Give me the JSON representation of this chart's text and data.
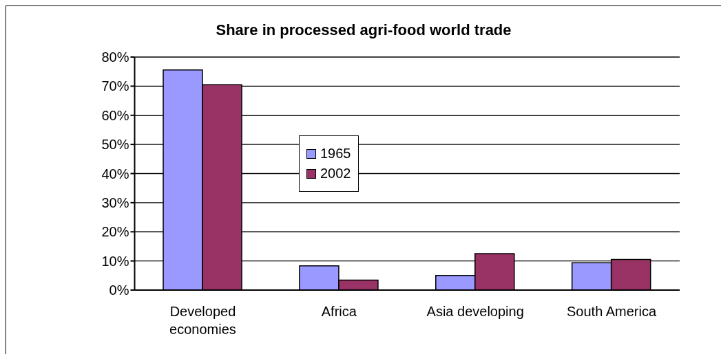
{
  "chart_data": {
    "type": "bar",
    "title": "Share in processed agri-food world trade",
    "categories": [
      "Developed economies",
      "Africa",
      "Asia developing",
      "South America"
    ],
    "series": [
      {
        "name": "1965",
        "color": "#9999ff",
        "values": [
          75.6,
          8.3,
          5.0,
          9.4
        ]
      },
      {
        "name": "2002",
        "color": "#993366",
        "values": [
          70.5,
          3.4,
          12.5,
          10.5
        ]
      }
    ],
    "ylim": [
      0,
      80
    ],
    "yticks": [
      {
        "value": 0,
        "label": "0%"
      },
      {
        "value": 10,
        "label": "10%"
      },
      {
        "value": 20,
        "label": "20%"
      },
      {
        "value": 30,
        "label": "30%"
      },
      {
        "value": 40,
        "label": "40%"
      },
      {
        "value": 50,
        "label": "50%"
      },
      {
        "value": 60,
        "label": "60%"
      },
      {
        "value": 70,
        "label": "70%"
      },
      {
        "value": 80,
        "label": "80%"
      }
    ],
    "grid": "y",
    "legend": "center"
  }
}
